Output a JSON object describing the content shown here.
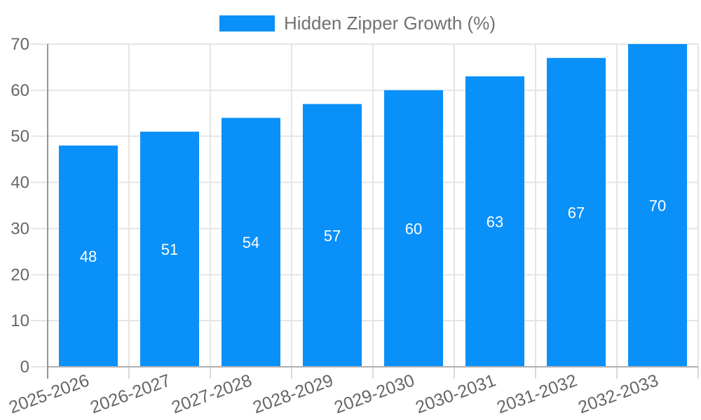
{
  "chart_data": {
    "type": "bar",
    "title": "Hidden Zipper Growth (%)",
    "categories": [
      "2025-2026",
      "2026-2027",
      "2027-2028",
      "2028-2029",
      "2029-2030",
      "2030-2031",
      "2031-2032",
      "2032-2033"
    ],
    "series": [
      {
        "name": "Hidden Zipper Growth (%)",
        "values": [
          48,
          51,
          54,
          57,
          60,
          63,
          67,
          70
        ]
      }
    ],
    "value_labels": [
      "48",
      "51",
      "54",
      "57",
      "60",
      "63",
      "67",
      "70"
    ],
    "ylabel": "",
    "xlabel": "",
    "ylim": [
      0,
      70
    ],
    "ytick_step": 10,
    "yticks": [
      "0",
      "10",
      "20",
      "30",
      "40",
      "50",
      "60",
      "70"
    ],
    "grid": true,
    "legend_position": "top-center",
    "colors": {
      "bar": "#0a90f9",
      "value_label": "#ffffff",
      "axis_label": "#666666",
      "legend_text": "#717171",
      "gridline": "#e4e4e4",
      "tick": "#d9d9d9",
      "axis_line": "#969696",
      "baseline": "#b0b0b0"
    }
  }
}
